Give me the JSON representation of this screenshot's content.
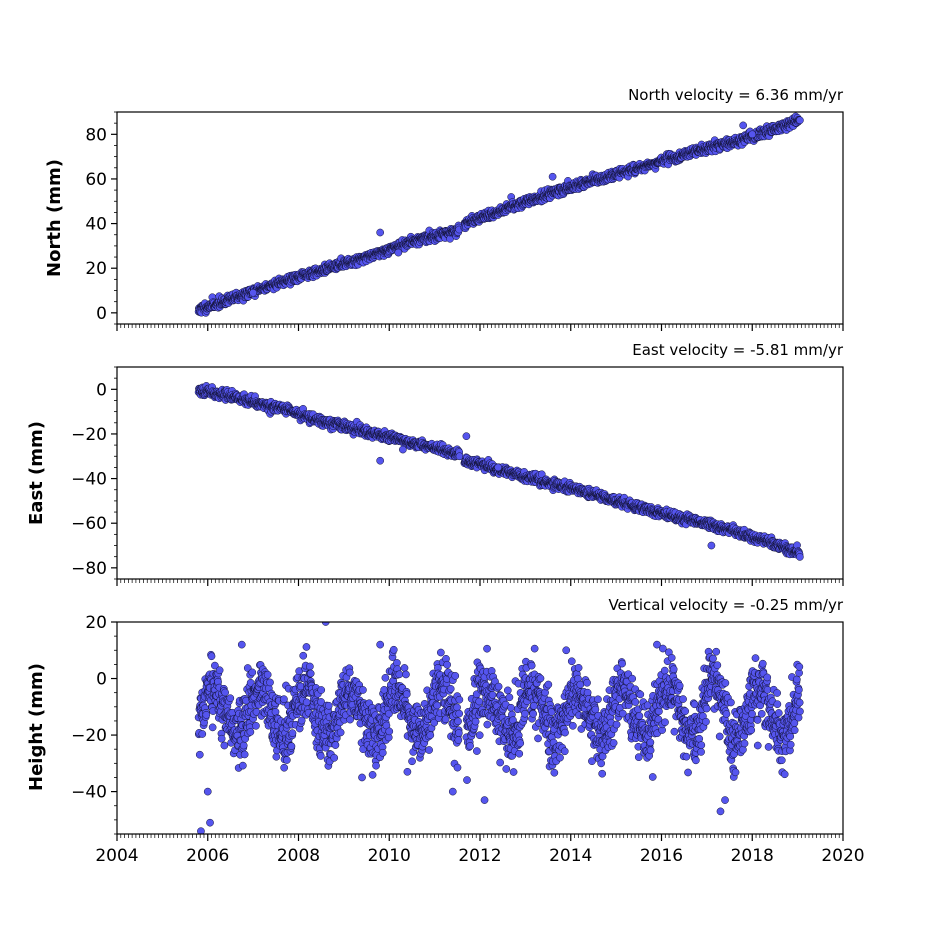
{
  "chart_data": [
    {
      "type": "scatter",
      "title": "North velocity = 6.36 mm/yr",
      "ylabel": "North (mm)",
      "xlabel": "",
      "xlim": [
        2004,
        2020
      ],
      "ylim": [
        -5,
        90
      ],
      "yticks": [
        "0",
        "20",
        "40",
        "60",
        "80"
      ],
      "yticks_values": [
        0,
        20,
        40,
        60,
        80
      ],
      "grid": false,
      "marker_color": "#5555ee",
      "marker_edge_color": "#111133",
      "trend": [
        [
          2005.8,
          1.5
        ],
        [
          2006.5,
          6
        ],
        [
          2007.5,
          13
        ],
        [
          2008.5,
          19
        ],
        [
          2009.5,
          25
        ],
        [
          2010.5,
          32
        ],
        [
          2011.55,
          37
        ],
        [
          2011.65,
          40
        ],
        [
          2012.5,
          46
        ],
        [
          2013.5,
          53
        ],
        [
          2014.5,
          59
        ],
        [
          2015.5,
          65
        ],
        [
          2016.5,
          71
        ],
        [
          2017.5,
          76
        ],
        [
          2018.5,
          82
        ],
        [
          2019.05,
          87
        ]
      ],
      "gaps": [
        [
          11.55,
          11.65
        ]
      ],
      "scatter_std": 1.0,
      "outliers": [
        [
          2009.8,
          36
        ],
        [
          2013.6,
          61
        ],
        [
          2017.8,
          84
        ],
        [
          2018.0,
          80
        ],
        [
          2007.0,
          9
        ],
        [
          2010.2,
          27
        ]
      ]
    },
    {
      "type": "scatter",
      "title": "East velocity = -5.81 mm/yr",
      "ylabel": "East (mm)",
      "xlabel": "",
      "xlim": [
        2004,
        2020
      ],
      "ylim": [
        -85,
        10
      ],
      "yticks": [
        "0",
        "−20",
        "−40",
        "−60",
        "−80"
      ],
      "yticks_values": [
        0,
        -20,
        -40,
        -60,
        -80
      ],
      "grid": false,
      "marker_color": "#5555ee",
      "marker_edge_color": "#111133",
      "trend": [
        [
          2005.8,
          0
        ],
        [
          2006.5,
          -3
        ],
        [
          2007.5,
          -8
        ],
        [
          2008.5,
          -14
        ],
        [
          2009.5,
          -19
        ],
        [
          2010.5,
          -24
        ],
        [
          2011.55,
          -29
        ],
        [
          2011.65,
          -32
        ],
        [
          2012.5,
          -36
        ],
        [
          2013.5,
          -42
        ],
        [
          2014.5,
          -47
        ],
        [
          2015.5,
          -53
        ],
        [
          2016.5,
          -58
        ],
        [
          2017.5,
          -63
        ],
        [
          2018.5,
          -69
        ],
        [
          2019.05,
          -74
        ]
      ],
      "gaps": [
        [
          11.55,
          11.65
        ]
      ],
      "scatter_std": 1.0,
      "outliers": [
        [
          2009.8,
          -32
        ],
        [
          2011.7,
          -21
        ],
        [
          2010.3,
          -27
        ],
        [
          2017.1,
          -70
        ],
        [
          2012.4,
          -35
        ]
      ]
    },
    {
      "type": "scatter",
      "title": "Vertical velocity = -0.25 mm/yr",
      "ylabel": "Height (mm)",
      "xlabel": "",
      "xlim": [
        2004,
        2020
      ],
      "ylim": [
        -55,
        20
      ],
      "yticks": [
        "20",
        "0",
        "−20",
        "−40"
      ],
      "yticks_values": [
        20,
        0,
        -20,
        -40
      ],
      "xticks": [
        "2004",
        "2006",
        "2008",
        "2010",
        "2012",
        "2014",
        "2016",
        "2018",
        "2020"
      ],
      "xticks_values": [
        2004,
        2006,
        2008,
        2010,
        2012,
        2014,
        2016,
        2018,
        2020
      ],
      "grid": false,
      "marker_color": "#5555ee",
      "marker_edge_color": "#111133",
      "baseline": -12,
      "seasonal_amplitude": 8,
      "scatter_std": 5.5,
      "gaps": [
        [
          11.55,
          11.7
        ]
      ],
      "outliers": [
        [
          2005.85,
          -54
        ],
        [
          2006.05,
          -51
        ],
        [
          2006.0,
          -40
        ],
        [
          2006.75,
          12
        ],
        [
          2008.6,
          20
        ],
        [
          2009.8,
          12
        ],
        [
          2011.4,
          -40
        ],
        [
          2012.1,
          -43
        ],
        [
          2017.3,
          -47
        ],
        [
          2017.4,
          -43
        ],
        [
          2015.9,
          12
        ],
        [
          2013.9,
          10
        ],
        [
          2009.4,
          -35
        ],
        [
          2010.4,
          -33
        ]
      ]
    }
  ]
}
